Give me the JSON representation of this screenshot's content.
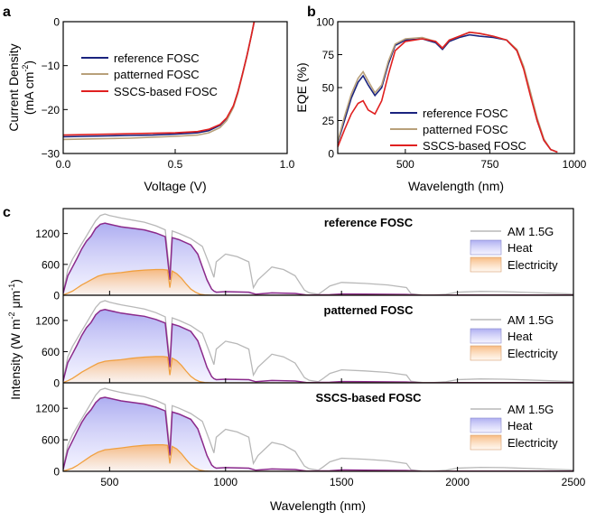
{
  "chart_data": [
    {
      "panel": "a",
      "type": "line",
      "xlabel": "Voltage (V)",
      "ylabel_line1": "Current Density",
      "ylabel_line2": "(mA cm",
      "ylabel_sup": "-2",
      "ylabel_end": ")",
      "xlim": [
        0.0,
        1.0
      ],
      "ylim": [
        -30,
        0
      ],
      "xticks": [
        "0.0",
        "0.5",
        "1.0"
      ],
      "xtick_values": [
        0.0,
        0.5,
        1.0
      ],
      "yticks": [
        "-30",
        "-20",
        "-10",
        "0"
      ],
      "ytick_values": [
        -30,
        -20,
        -10,
        0
      ],
      "legend_position": "center-left",
      "series": [
        {
          "name": "reference FOSC",
          "color": "#1a237e",
          "x": [
            0,
            0.1,
            0.2,
            0.3,
            0.4,
            0.5,
            0.6,
            0.65,
            0.7,
            0.73,
            0.76,
            0.78,
            0.8,
            0.82,
            0.84,
            0.853
          ],
          "y": [
            -26.2,
            -26.1,
            -26.0,
            -25.9,
            -25.8,
            -25.6,
            -25.3,
            -24.8,
            -23.6,
            -22.0,
            -19.2,
            -16.0,
            -12.0,
            -7.8,
            -3.2,
            0
          ]
        },
        {
          "name": "patterned FOSC",
          "color": "#b8a07a",
          "x": [
            0,
            0.1,
            0.2,
            0.3,
            0.4,
            0.5,
            0.6,
            0.65,
            0.7,
            0.73,
            0.76,
            0.78,
            0.8,
            0.82,
            0.84,
            0.852
          ],
          "y": [
            -26.8,
            -26.7,
            -26.6,
            -26.5,
            -26.3,
            -26.1,
            -25.8,
            -25.3,
            -24.1,
            -22.5,
            -19.5,
            -16.3,
            -12.2,
            -7.9,
            -3.2,
            0
          ]
        },
        {
          "name": "SSCS-based FOSC",
          "color": "#e02020",
          "x": [
            0,
            0.1,
            0.2,
            0.3,
            0.4,
            0.5,
            0.6,
            0.65,
            0.7,
            0.73,
            0.76,
            0.78,
            0.8,
            0.82,
            0.84,
            0.853
          ],
          "y": [
            -25.8,
            -25.7,
            -25.6,
            -25.5,
            -25.4,
            -25.3,
            -25.0,
            -24.5,
            -23.4,
            -21.9,
            -19.1,
            -16.0,
            -12.0,
            -7.8,
            -3.2,
            0
          ]
        }
      ]
    },
    {
      "panel": "b",
      "type": "line",
      "xlabel": "Wavelength (nm)",
      "ylabel": "EQE (%)",
      "xlim": [
        300,
        1000
      ],
      "ylim": [
        0,
        100
      ],
      "xticks": [
        "500",
        "750",
        "1000"
      ],
      "xtick_values": [
        500,
        750,
        1000
      ],
      "yticks": [
        "0",
        "25",
        "50",
        "75",
        "100"
      ],
      "ytick_values": [
        0,
        25,
        50,
        75,
        100
      ],
      "legend_position": "lower-center",
      "series": [
        {
          "name": "reference FOSC",
          "color": "#1a237e",
          "x": [
            300,
            320,
            340,
            360,
            375,
            390,
            410,
            430,
            450,
            470,
            500,
            550,
            590,
            610,
            630,
            660,
            690,
            720,
            760,
            800,
            830,
            850,
            870,
            890,
            910,
            930,
            950
          ],
          "y": [
            8,
            25,
            42,
            54,
            59,
            52,
            44,
            50,
            68,
            82,
            86,
            87,
            84,
            79,
            85,
            88,
            90,
            89,
            88,
            86,
            78,
            65,
            45,
            25,
            10,
            3,
            1
          ]
        },
        {
          "name": "patterned FOSC",
          "color": "#b8a07a",
          "x": [
            300,
            320,
            340,
            360,
            375,
            390,
            410,
            430,
            450,
            470,
            500,
            550,
            590,
            610,
            630,
            660,
            690,
            720,
            760,
            800,
            830,
            850,
            870,
            890,
            910,
            930,
            950
          ],
          "y": [
            9,
            28,
            45,
            57,
            62,
            55,
            46,
            52,
            70,
            83,
            87,
            88,
            85,
            80,
            86,
            89,
            92,
            91,
            89,
            86,
            79,
            66,
            47,
            27,
            11,
            3,
            1
          ]
        },
        {
          "name": "SSCS-based FOSC",
          "color": "#e02020",
          "x": [
            300,
            320,
            340,
            360,
            375,
            390,
            410,
            430,
            450,
            470,
            500,
            550,
            590,
            610,
            630,
            660,
            690,
            720,
            760,
            800,
            830,
            850,
            870,
            890,
            910,
            930,
            950
          ],
          "y": [
            5,
            18,
            30,
            38,
            40,
            33,
            30,
            40,
            60,
            78,
            85,
            87,
            85,
            80,
            86,
            89,
            92,
            91,
            89,
            86,
            78,
            64,
            44,
            25,
            10,
            3,
            1
          ]
        }
      ]
    },
    {
      "panel": "c",
      "type": "area",
      "xlabel": "Wavelength (nm)",
      "ylabel_main": "Intensity (W m",
      "ylabel_sup1": "-2",
      "ylabel_mid": " μm",
      "ylabel_sup2": "-1",
      "ylabel_end": ")",
      "xlim": [
        300,
        2500
      ],
      "ylim": [
        0,
        1650
      ],
      "xticks": [
        "500",
        "1000",
        "1500",
        "2000",
        "2500"
      ],
      "xtick_values": [
        500,
        1000,
        1500,
        2000,
        2500
      ],
      "yticks": [
        "0",
        "600",
        "1200"
      ],
      "ytick_values": [
        0,
        600,
        1200
      ],
      "legend_entries": [
        "AM 1.5G",
        "Heat",
        "Electricity"
      ],
      "am15g": {
        "x": [
          300,
          320,
          340,
          360,
          380,
          400,
          420,
          440,
          460,
          480,
          500,
          550,
          600,
          650,
          700,
          740,
          760,
          770,
          800,
          850,
          900,
          930,
          950,
          960,
          1000,
          1050,
          1100,
          1120,
          1140,
          1200,
          1250,
          1300,
          1340,
          1360,
          1400,
          1420,
          1450,
          1500,
          1600,
          1700,
          1780,
          1800,
          1850,
          1900,
          1950,
          2000,
          2100,
          2200,
          2300,
          2400,
          2500
        ],
        "y": [
          50,
          500,
          700,
          850,
          1000,
          1150,
          1300,
          1450,
          1550,
          1580,
          1550,
          1500,
          1460,
          1420,
          1350,
          1270,
          400,
          1250,
          1200,
          1100,
          950,
          600,
          350,
          650,
          800,
          750,
          650,
          150,
          300,
          550,
          500,
          380,
          100,
          50,
          20,
          80,
          180,
          250,
          230,
          200,
          150,
          30,
          5,
          5,
          20,
          60,
          75,
          70,
          55,
          40,
          25
        ]
      },
      "subpanels": [
        {
          "title": "reference FOSC",
          "heat": {
            "x": [
              300,
              320,
              340,
              360,
              380,
              400,
              420,
              440,
              460,
              480,
              500,
              550,
              600,
              650,
              700,
              740,
              760,
              770,
              800,
              850,
              880,
              900,
              920,
              940,
              950,
              960,
              1000,
              1100,
              1130,
              1200,
              1300,
              1350,
              1450,
              1500,
              1600,
              1780,
              1850,
              2000,
              2200,
              2500
            ],
            "y": [
              40,
              380,
              550,
              720,
              900,
              1050,
              1150,
              1300,
              1380,
              1400,
              1380,
              1330,
              1300,
              1270,
              1210,
              1140,
              300,
              1120,
              1080,
              980,
              800,
              550,
              300,
              120,
              80,
              60,
              70,
              60,
              20,
              45,
              35,
              5,
              10,
              25,
              22,
              15,
              0,
              5,
              5,
              3
            ]
          },
          "elec": {
            "x": [
              300,
              320,
              340,
              360,
              380,
              400,
              420,
              450,
              480,
              500,
              550,
              600,
              650,
              700,
              730,
              750,
              760,
              770,
              790,
              810,
              830,
              850,
              870,
              890,
              910,
              930,
              950,
              1000,
              2500
            ],
            "y": [
              5,
              40,
              80,
              140,
              200,
              250,
              300,
              370,
              410,
              420,
              440,
              470,
              490,
              500,
              500,
              490,
              150,
              470,
              420,
              330,
              220,
              120,
              60,
              20,
              5,
              1,
              0,
              0,
              0
            ]
          }
        },
        {
          "title": "patterned FOSC",
          "heat": {
            "x": [
              300,
              320,
              340,
              360,
              380,
              400,
              420,
              440,
              460,
              480,
              500,
              550,
              600,
              650,
              700,
              740,
              760,
              770,
              800,
              850,
              880,
              900,
              920,
              940,
              950,
              960,
              1000,
              1100,
              1130,
              1200,
              1300,
              1350,
              1450,
              1500,
              1600,
              1780,
              1850,
              2000,
              2200,
              2500
            ],
            "y": [
              40,
              390,
              560,
              730,
              910,
              1060,
              1160,
              1310,
              1390,
              1410,
              1390,
              1340,
              1310,
              1280,
              1220,
              1150,
              300,
              1130,
              1090,
              990,
              810,
              560,
              300,
              120,
              80,
              60,
              70,
              60,
              20,
              45,
              35,
              5,
              10,
              25,
              22,
              15,
              0,
              5,
              5,
              3
            ]
          },
          "elec": {
            "x": [
              300,
              320,
              340,
              360,
              380,
              400,
              420,
              450,
              480,
              500,
              550,
              600,
              650,
              700,
              730,
              750,
              760,
              770,
              790,
              810,
              830,
              850,
              870,
              890,
              910,
              930,
              950,
              1000,
              2500
            ],
            "y": [
              5,
              40,
              85,
              145,
              205,
              255,
              305,
              375,
              415,
              425,
              445,
              475,
              495,
              505,
              505,
              495,
              150,
              475,
              425,
              335,
              225,
              125,
              60,
              20,
              5,
              1,
              0,
              0,
              0
            ]
          }
        },
        {
          "title": "SSCS-based FOSC",
          "heat": {
            "x": [
              300,
              320,
              340,
              360,
              380,
              400,
              420,
              440,
              460,
              480,
              500,
              550,
              600,
              650,
              700,
              740,
              760,
              770,
              800,
              850,
              880,
              900,
              920,
              940,
              950,
              960,
              1000,
              1100,
              1130,
              1200,
              1300,
              1350,
              1450,
              1500,
              1600,
              1780,
              1850,
              2000,
              2200,
              2500
            ],
            "y": [
              40,
              400,
              580,
              760,
              930,
              1070,
              1170,
              1310,
              1390,
              1410,
              1390,
              1340,
              1310,
              1280,
              1220,
              1150,
              300,
              1130,
              1090,
              990,
              810,
              560,
              300,
              120,
              80,
              60,
              70,
              60,
              20,
              45,
              35,
              5,
              10,
              25,
              22,
              15,
              0,
              5,
              5,
              3
            ]
          },
          "elec": {
            "x": [
              300,
              320,
              340,
              360,
              380,
              400,
              420,
              450,
              480,
              500,
              550,
              600,
              650,
              700,
              730,
              750,
              760,
              770,
              790,
              810,
              830,
              850,
              870,
              890,
              910,
              930,
              950,
              1000,
              2500
            ],
            "y": [
              5,
              30,
              60,
              110,
              170,
              230,
              290,
              365,
              410,
              420,
              445,
              475,
              495,
              505,
              505,
              495,
              150,
              475,
              425,
              335,
              225,
              125,
              60,
              20,
              5,
              1,
              0,
              0,
              0
            ]
          }
        }
      ],
      "colors": {
        "am15g": "#b8b8b8",
        "heat_line": "#8b2a8b",
        "heat_fill": "#b9b9f3",
        "elec_line": "#f0a040",
        "elec_fill": "#fbd9b0"
      }
    }
  ],
  "panel_labels": {
    "a": "a",
    "b": "b",
    "c": "c"
  }
}
